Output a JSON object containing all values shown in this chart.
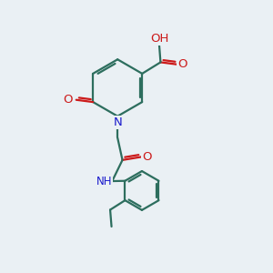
{
  "bg_color": "#eaf0f4",
  "bond_color": "#2d6e5e",
  "bond_width": 1.6,
  "N_color": "#1a1acc",
  "O_color": "#cc1a1a",
  "font_size_atom": 8.5,
  "fig_size": [
    3.0,
    3.0
  ],
  "dpi": 100,
  "xlim": [
    0,
    10
  ],
  "ylim": [
    0,
    10
  ]
}
